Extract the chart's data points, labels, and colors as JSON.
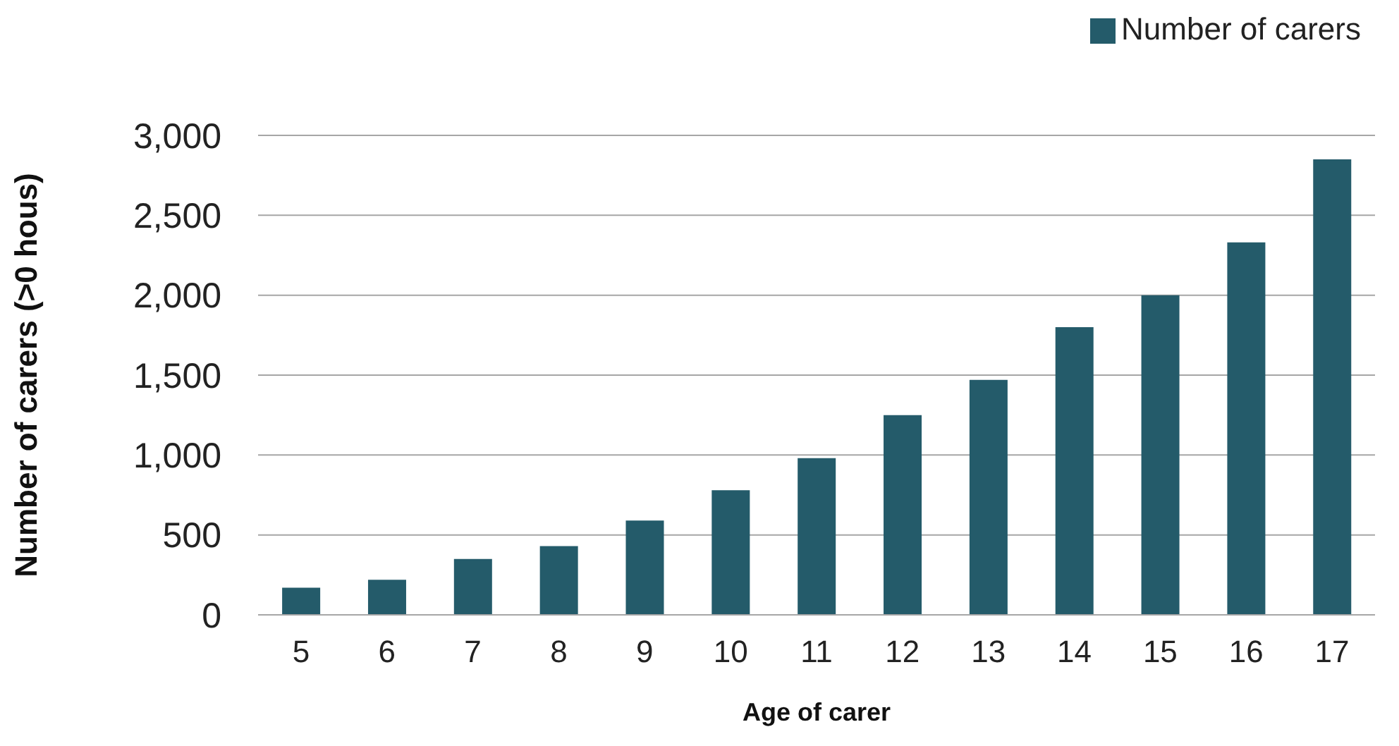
{
  "chart_data": {
    "type": "bar",
    "xlabel": "Age of carer",
    "ylabel": "Number of carers (>0 hous)",
    "categories": [
      "5",
      "6",
      "7",
      "8",
      "9",
      "10",
      "11",
      "12",
      "13",
      "14",
      "15",
      "16",
      "17"
    ],
    "series": [
      {
        "name": "Number of carers",
        "color": "#245b6a",
        "values": [
          170,
          220,
          350,
          430,
          590,
          780,
          980,
          1250,
          1470,
          1800,
          2000,
          2330,
          2850
        ]
      }
    ],
    "ylim": [
      0,
      3000
    ],
    "yticks": [
      0,
      500,
      {
        "value": 1000,
        "label": "1,000"
      },
      {
        "value": 1500,
        "label": "1,500"
      },
      {
        "value": 2000,
        "label": "2,000"
      },
      {
        "value": 2500,
        "label": "2,500"
      },
      {
        "value": 3000,
        "label": "3,000"
      }
    ],
    "grid": "y",
    "legend": "top right"
  }
}
